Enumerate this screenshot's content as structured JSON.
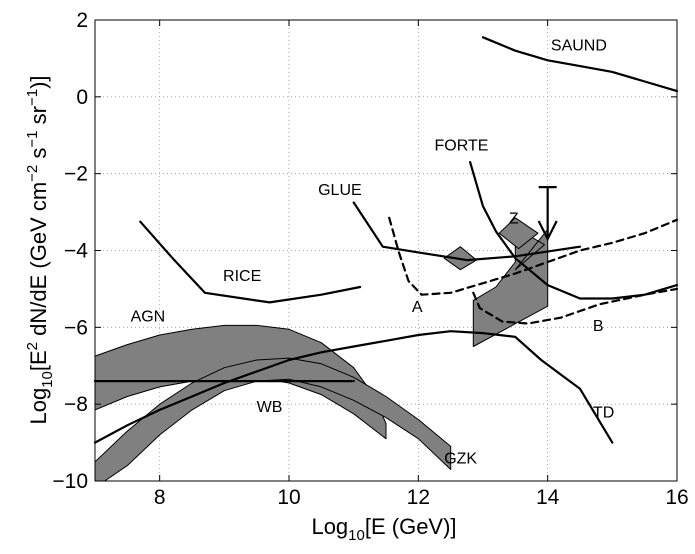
{
  "chart_data": {
    "type": "line",
    "xlabel": {
      "prefix": "Log",
      "sub": "10",
      "rest": "[E (GeV)]"
    },
    "ylabel": {
      "p1": "Log",
      "s1": "10",
      "p2": "[E",
      "e1": "2",
      "p3": " dN/dE (GeV cm",
      "e2": "−2",
      "p4": " s",
      "e3": "−1",
      "p5": " sr",
      "e4": "−1",
      "p6": ")]"
    },
    "xlim": [
      7,
      16
    ],
    "ylim": [
      -10,
      2
    ],
    "xticks": [
      8,
      10,
      12,
      14,
      16
    ],
    "xtick_labels": [
      "8",
      "10",
      "12",
      "14",
      "16"
    ],
    "yticks": [
      -10,
      -8,
      -6,
      -4,
      -2,
      0,
      2
    ],
    "ytick_labels": [
      "−10",
      "−8",
      "−6",
      "−4",
      "−2",
      "0",
      "2"
    ],
    "grid": true,
    "colors": {
      "line": "#000000",
      "fill": "#808080",
      "grid": "#999999"
    },
    "lines": [
      {
        "label": "SAUND",
        "dashed": false,
        "points": [
          [
            13,
            1.55
          ],
          [
            13.5,
            1.2
          ],
          [
            14,
            0.95
          ],
          [
            14.5,
            0.8
          ],
          [
            15,
            0.65
          ],
          [
            15.5,
            0.4
          ],
          [
            16,
            0.15
          ]
        ]
      },
      {
        "label": "RICE",
        "dashed": false,
        "points": [
          [
            7.7,
            -3.25
          ],
          [
            8.2,
            -4.2
          ],
          [
            8.7,
            -5.1
          ],
          [
            9.7,
            -5.35
          ],
          [
            10.5,
            -5.15
          ],
          [
            11.1,
            -4.95
          ]
        ]
      },
      {
        "label": "GLUE",
        "dashed": false,
        "points": [
          [
            11.0,
            -2.75
          ],
          [
            11.45,
            -3.9
          ],
          [
            12.0,
            -4.05
          ],
          [
            12.75,
            -4.25
          ],
          [
            13.5,
            -4.15
          ],
          [
            14.5,
            -3.9
          ]
        ]
      },
      {
        "label": "FORTE",
        "dashed": false,
        "points": [
          [
            12.8,
            -1.7
          ],
          [
            13.0,
            -2.85
          ],
          [
            13.2,
            -3.5
          ],
          [
            13.5,
            -4.2
          ],
          [
            14.0,
            -4.9
          ],
          [
            14.5,
            -5.25
          ],
          [
            15.0,
            -5.25
          ],
          [
            15.5,
            -5.15
          ],
          [
            16,
            -4.9
          ]
        ]
      },
      {
        "label": "A",
        "dashed": true,
        "points": [
          [
            11.55,
            -3.15
          ],
          [
            11.7,
            -4.05
          ],
          [
            11.85,
            -4.8
          ],
          [
            12.05,
            -5.15
          ],
          [
            12.5,
            -5.1
          ],
          [
            13,
            -4.85
          ],
          [
            13.5,
            -4.6
          ],
          [
            14,
            -4.3
          ],
          [
            14.5,
            -4.0
          ],
          [
            15,
            -3.8
          ],
          [
            15.5,
            -3.55
          ],
          [
            16,
            -3.2
          ]
        ]
      },
      {
        "label": "B",
        "dashed": true,
        "points": [
          [
            12.85,
            -5.1
          ],
          [
            12.95,
            -5.5
          ],
          [
            13.3,
            -5.85
          ],
          [
            13.7,
            -5.9
          ],
          [
            14.2,
            -5.75
          ],
          [
            14.8,
            -5.4
          ],
          [
            15.5,
            -5.15
          ],
          [
            16,
            -5.0
          ]
        ]
      },
      {
        "label": "TD",
        "dashed": false,
        "points": [
          [
            7,
            -9
          ],
          [
            7.5,
            -8.55
          ],
          [
            8,
            -8.15
          ],
          [
            8.5,
            -7.8
          ],
          [
            9,
            -7.45
          ],
          [
            9.5,
            -7.15
          ],
          [
            10,
            -6.85
          ],
          [
            10.5,
            -6.65
          ],
          [
            11,
            -6.5
          ],
          [
            11.5,
            -6.35
          ],
          [
            12,
            -6.2
          ],
          [
            12.5,
            -6.1
          ],
          [
            13,
            -6.15
          ],
          [
            13.5,
            -6.25
          ],
          [
            13.9,
            -6.85
          ],
          [
            14.5,
            -7.6
          ],
          [
            15,
            -9
          ]
        ]
      },
      {
        "label": "WB",
        "dashed": false,
        "points": [
          [
            7,
            -7.4
          ],
          [
            11,
            -7.4
          ]
        ]
      }
    ],
    "regions": [
      {
        "label": "AGN",
        "points": [
          [
            7,
            -6.75
          ],
          [
            7.5,
            -6.45
          ],
          [
            8,
            -6.2
          ],
          [
            8.5,
            -6.05
          ],
          [
            9,
            -5.95
          ],
          [
            9.5,
            -5.95
          ],
          [
            10,
            -6.05
          ],
          [
            10.5,
            -6.4
          ],
          [
            11,
            -7.05
          ],
          [
            11.3,
            -7.75
          ],
          [
            11.5,
            -8.5
          ],
          [
            11.5,
            -8.9
          ],
          [
            11,
            -8.25
          ],
          [
            10.5,
            -7.75
          ],
          [
            10,
            -7.45
          ],
          [
            9.5,
            -7.3
          ],
          [
            9,
            -7.3
          ],
          [
            8.5,
            -7.4
          ],
          [
            8,
            -7.55
          ],
          [
            7.5,
            -7.8
          ],
          [
            7,
            -8.15
          ]
        ]
      },
      {
        "label": "GZK",
        "points": [
          [
            7,
            -9.5
          ],
          [
            7.5,
            -8.7
          ],
          [
            8,
            -8.0
          ],
          [
            8.5,
            -7.45
          ],
          [
            9,
            -7.05
          ],
          [
            9.5,
            -6.85
          ],
          [
            10,
            -6.8
          ],
          [
            10.5,
            -6.95
          ],
          [
            11,
            -7.3
          ],
          [
            11.5,
            -7.8
          ],
          [
            12,
            -8.4
          ],
          [
            12.5,
            -9.1
          ],
          [
            12.5,
            -9.7
          ],
          [
            12,
            -8.9
          ],
          [
            11.5,
            -8.35
          ],
          [
            11,
            -7.9
          ],
          [
            10.5,
            -7.55
          ],
          [
            10,
            -7.35
          ],
          [
            9.5,
            -7.4
          ],
          [
            9,
            -7.65
          ],
          [
            8.5,
            -8.15
          ],
          [
            8,
            -8.8
          ],
          [
            7.5,
            -9.6
          ],
          [
            7.15,
            -10
          ],
          [
            7,
            -10
          ]
        ]
      },
      {
        "label": "Z",
        "points": [
          [
            12.85,
            -5.3
          ],
          [
            13.2,
            -4.95
          ],
          [
            13.5,
            -4.3
          ],
          [
            13.5,
            -3.4
          ],
          [
            13.95,
            -3.85
          ],
          [
            13.5,
            -4.5
          ],
          [
            14.0,
            -3.45
          ],
          [
            14.0,
            -5.45
          ],
          [
            12.85,
            -6.5
          ]
        ]
      },
      {
        "label": "",
        "points": [
          [
            12.4,
            -4.2
          ],
          [
            12.65,
            -3.9
          ],
          [
            12.9,
            -4.25
          ],
          [
            12.65,
            -4.5
          ]
        ]
      },
      {
        "label": "",
        "points": [
          [
            13.25,
            -3.55
          ],
          [
            13.5,
            -3.15
          ],
          [
            13.85,
            -3.55
          ],
          [
            13.55,
            -3.95
          ]
        ]
      }
    ],
    "limit_arrow": {
      "x": 14,
      "y_top": -2.35,
      "y_head": -3.7
    },
    "annotations": [
      {
        "text": "SAUND",
        "x": 14.05,
        "y": 1.2
      },
      {
        "text": "FORTE",
        "x": 12.25,
        "y": -1.4
      },
      {
        "text": "GLUE",
        "x": 10.45,
        "y": -2.55
      },
      {
        "text": "Z",
        "x": 13.4,
        "y": -3.3
      },
      {
        "text": "RICE",
        "x": 8.98,
        "y": -4.8
      },
      {
        "text": "A",
        "x": 11.9,
        "y": -5.6
      },
      {
        "text": "AGN",
        "x": 7.55,
        "y": -5.85
      },
      {
        "text": "B",
        "x": 14.7,
        "y": -6.1
      },
      {
        "text": "WB",
        "x": 9.5,
        "y": -8.2
      },
      {
        "text": "TD",
        "x": 14.7,
        "y": -8.35
      },
      {
        "text": "GZK",
        "x": 12.4,
        "y": -9.55
      }
    ]
  }
}
